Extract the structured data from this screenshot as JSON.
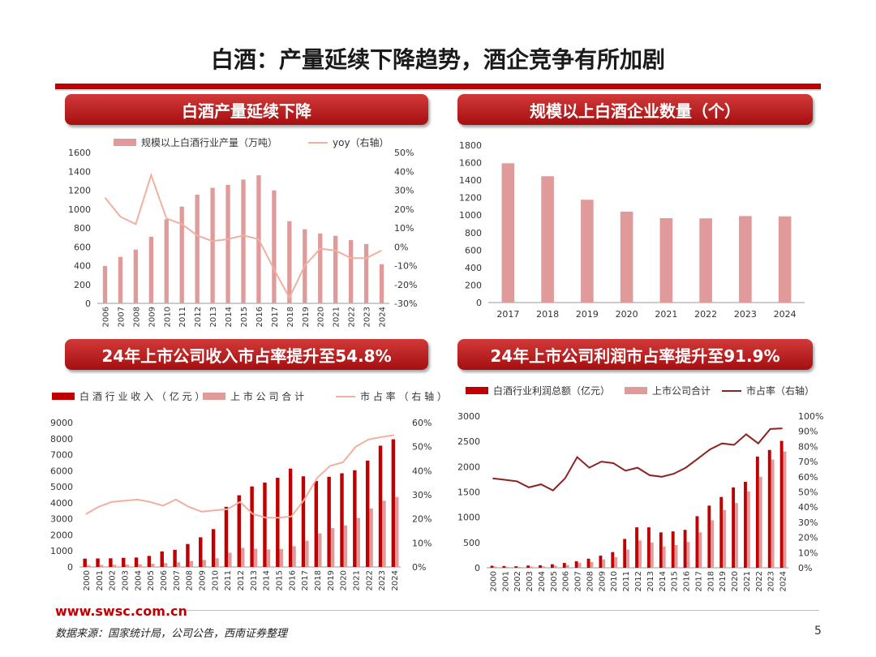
{
  "page": {
    "title": "白酒：产量延续下降趋势，酒企竞争有所加剧",
    "url": "www.swsc.com.cn",
    "source": "数据来源：国家统计局，公司公告，西南证券整理",
    "page_number": "5"
  },
  "colors": {
    "accent": "#c00000",
    "bar_light": "#e09a9a",
    "bar_dark": "#c00000",
    "line_light": "#f0b0a0",
    "line_dark": "#8b2323"
  },
  "chart_data": [
    {
      "id": "c1",
      "type": "bar",
      "title": "白酒产量延续下降",
      "categories": [
        "2006",
        "2007",
        "2008",
        "2009",
        "2010",
        "2011",
        "2012",
        "2013",
        "2014",
        "2015",
        "2016",
        "2017",
        "2018",
        "2019",
        "2020",
        "2021",
        "2022",
        "2023",
        "2024"
      ],
      "series": [
        {
          "name": "规模以上白酒行业产量（万吨）",
          "type": "bar",
          "axis": "left",
          "values": [
            397,
            493,
            570,
            707,
            891,
            1026,
            1153,
            1226,
            1257,
            1313,
            1358,
            1198,
            871,
            786,
            741,
            716,
            671,
            629,
            415
          ]
        },
        {
          "name": "yoy（右轴）",
          "type": "line",
          "axis": "right",
          "values": [
            26,
            16,
            12,
            38,
            15,
            12,
            6,
            3,
            4,
            6,
            4,
            -12,
            -27,
            -10,
            -1,
            -2,
            -6,
            -6,
            -2
          ]
        }
      ],
      "ylim": [
        0,
        1600
      ],
      "yticks": [
        0,
        200,
        400,
        600,
        800,
        1000,
        1200,
        1400,
        1600
      ],
      "y2lim": [
        -30,
        50
      ],
      "y2ticks": [
        "50%",
        "40%",
        "30%",
        "20%",
        "10%",
        "0%",
        "-10%",
        "-20%",
        "-30%"
      ]
    },
    {
      "id": "c2",
      "type": "bar",
      "title": "规模以上白酒企业数量（个）",
      "categories": [
        "2017",
        "2018",
        "2019",
        "2020",
        "2021",
        "2022",
        "2023",
        "2024"
      ],
      "series": [
        {
          "name": "规模以上白酒企业数量",
          "type": "bar",
          "axis": "left",
          "values": [
            1593,
            1445,
            1176,
            1040,
            965,
            963,
            989,
            986
          ]
        }
      ],
      "ylim": [
        0,
        1800
      ],
      "yticks": [
        0,
        200,
        400,
        600,
        800,
        1000,
        1200,
        1400,
        1600,
        1800
      ]
    },
    {
      "id": "c3",
      "type": "bar",
      "title": "24年上市公司收入市占率提升至54.8%",
      "categories": [
        "2000",
        "2001",
        "2002",
        "2003",
        "2004",
        "2005",
        "2006",
        "2007",
        "2008",
        "2009",
        "2010",
        "2011",
        "2012",
        "2013",
        "2014",
        "2015",
        "2016",
        "2017",
        "2018",
        "2019",
        "2020",
        "2021",
        "2022",
        "2023",
        "2024"
      ],
      "series": [
        {
          "name": "白酒行业收入（亿元）",
          "type": "bar",
          "axis": "left",
          "values": [
            520,
            530,
            540,
            570,
            590,
            690,
            970,
            1070,
            1430,
            1850,
            2360,
            3750,
            4470,
            5020,
            5260,
            5560,
            6130,
            5650,
            5360,
            5620,
            5840,
            6030,
            6630,
            7560,
            7960
          ]
        },
        {
          "name": "上市公司合计",
          "type": "bar",
          "axis": "left",
          "values": [
            115,
            125,
            135,
            150,
            170,
            200,
            240,
            290,
            370,
            440,
            540,
            890,
            1190,
            1140,
            1090,
            1120,
            1290,
            1630,
            2090,
            2420,
            2590,
            3050,
            3640,
            4130,
            4360
          ]
        },
        {
          "name": "市占率（右轴）",
          "type": "line",
          "axis": "right",
          "values": [
            22,
            25,
            27,
            27.5,
            28,
            27,
            25.5,
            28,
            25,
            23,
            23.5,
            24,
            27,
            22,
            20.5,
            20.5,
            21,
            28,
            37,
            42,
            43.5,
            50,
            53,
            54,
            54.8
          ]
        }
      ],
      "ylim": [
        0,
        9000
      ],
      "yticks": [
        0,
        1000,
        2000,
        3000,
        4000,
        5000,
        6000,
        7000,
        8000,
        9000
      ],
      "y2lim": [
        0,
        60
      ],
      "y2ticks": [
        "60%",
        "50%",
        "40%",
        "30%",
        "20%",
        "10%",
        "0%"
      ]
    },
    {
      "id": "c4",
      "type": "bar",
      "title": "24年上市公司利润市占率提升至91.9%",
      "categories": [
        "2000",
        "2001",
        "2002",
        "2003",
        "2004",
        "2005",
        "2006",
        "2007",
        "2008",
        "2009",
        "2010",
        "2011",
        "2012",
        "2013",
        "2014",
        "2015",
        "2016",
        "2017",
        "2018",
        "2019",
        "2020",
        "2021",
        "2022",
        "2023",
        "2024"
      ],
      "series": [
        {
          "name": "白酒行业利润总额（亿元）",
          "type": "bar",
          "axis": "left",
          "values": [
            40,
            35,
            30,
            45,
            50,
            70,
            95,
            130,
            180,
            240,
            310,
            570,
            800,
            800,
            700,
            720,
            750,
            1020,
            1230,
            1400,
            1590,
            1700,
            2200,
            2330,
            2510
          ]
        },
        {
          "name": "上市公司合计",
          "type": "bar",
          "axis": "left",
          "values": [
            25,
            20,
            18,
            24,
            28,
            38,
            55,
            95,
            115,
            165,
            210,
            360,
            540,
            500,
            420,
            450,
            510,
            700,
            940,
            1140,
            1280,
            1510,
            1800,
            2140,
            2300
          ]
        },
        {
          "name": "市占率（右轴）",
          "type": "line",
          "axis": "right",
          "values": [
            59,
            58,
            57,
            53,
            55,
            51,
            59,
            73,
            66,
            70,
            69,
            64,
            66,
            61,
            60,
            62,
            66,
            72,
            78,
            82,
            81,
            88,
            82,
            91.5,
            91.9
          ]
        }
      ],
      "ylim": [
        0,
        3000
      ],
      "yticks": [
        0,
        500,
        1000,
        1500,
        2000,
        2500,
        3000
      ],
      "y2lim": [
        0,
        100
      ],
      "y2ticks": [
        "100%",
        "90%",
        "80%",
        "70%",
        "60%",
        "50%",
        "40%",
        "30%",
        "20%",
        "10%",
        "0%"
      ]
    }
  ]
}
